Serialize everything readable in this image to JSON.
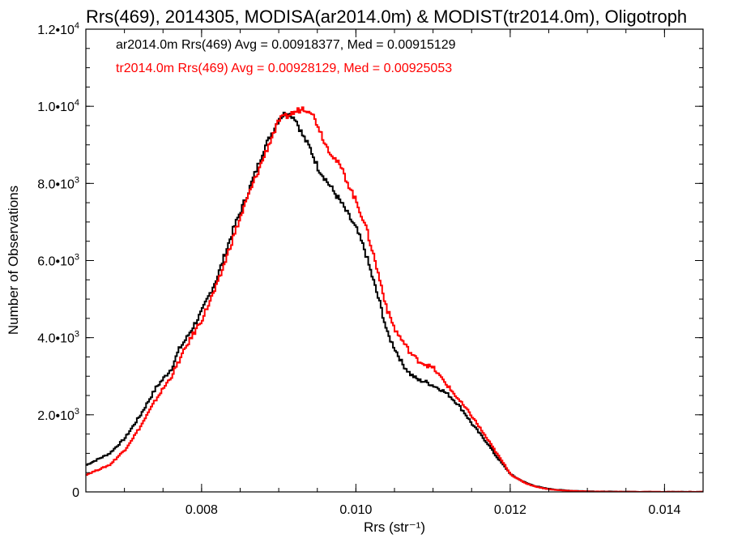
{
  "chart_data": {
    "type": "line",
    "title": "Rrs(469), 2014305, MODISA(ar2014.0m) & MODIST(tr2014.0m), Oligotroph",
    "xlabel": "Rrs (str⁻¹)",
    "ylabel": "Number of Observations",
    "xlim": [
      0.0065,
      0.0145
    ],
    "ylim": [
      0,
      12000
    ],
    "x_ticks": [
      0.008,
      0.01,
      0.012,
      0.014
    ],
    "x_tick_labels": [
      "0.008",
      "0.010",
      "0.012",
      "0.014"
    ],
    "y_ticks": [
      0,
      2000,
      4000,
      6000,
      8000,
      10000,
      12000
    ],
    "y_tick_labels": [
      {
        "mant": "0",
        "exp": ""
      },
      {
        "mant": "2.0•10",
        "exp": "3"
      },
      {
        "mant": "4.0•10",
        "exp": "3"
      },
      {
        "mant": "6.0•10",
        "exp": "3"
      },
      {
        "mant": "8.0•10",
        "exp": "3"
      },
      {
        "mant": "1.0•10",
        "exp": "4"
      },
      {
        "mant": "1.2•10",
        "exp": "4"
      }
    ],
    "legend_position": "top-left",
    "series": [
      {
        "label": "ar2014.0m Rrs(469) Avg = 0.00918377, Med = 0.00915129",
        "color": "#000000",
        "step": true,
        "x": [
          0.0065,
          0.0068,
          0.007,
          0.0072,
          0.0074,
          0.0076,
          0.0077,
          0.0078,
          0.008,
          0.0082,
          0.0084,
          0.0086,
          0.0088,
          0.0089,
          0.009,
          0.0091,
          0.0092,
          0.0093,
          0.0094,
          0.0095,
          0.0096,
          0.0097,
          0.0098,
          0.01,
          0.0101,
          0.0102,
          0.0103,
          0.0104,
          0.0105,
          0.0106,
          0.0107,
          0.0108,
          0.0109,
          0.011,
          0.0111,
          0.0112,
          0.0113,
          0.0114,
          0.0115,
          0.0116,
          0.0117,
          0.0118,
          0.0119,
          0.012,
          0.0121,
          0.0122,
          0.0123,
          0.0124,
          0.0125,
          0.0126,
          0.0128,
          0.013,
          0.0132,
          0.0134,
          0.0136,
          0.014,
          0.0145
        ],
        "y": [
          700,
          1000,
          1400,
          2000,
          2700,
          3200,
          3700,
          4000,
          4700,
          5600,
          6800,
          7800,
          8900,
          9300,
          9700,
          9850,
          9700,
          9250,
          8900,
          8400,
          8100,
          7800,
          7500,
          6800,
          6300,
          5600,
          4900,
          4100,
          3700,
          3300,
          3050,
          2900,
          2850,
          2750,
          2650,
          2500,
          2300,
          2050,
          1750,
          1500,
          1250,
          950,
          700,
          450,
          330,
          230,
          160,
          110,
          80,
          55,
          30,
          15,
          8,
          5,
          3,
          1,
          0
        ]
      },
      {
        "label": "tr2014.0m Rrs(469) Avg = 0.00928129, Med = 0.00925053",
        "color": "#ff0000",
        "step": true,
        "x": [
          0.0065,
          0.0068,
          0.007,
          0.0072,
          0.0074,
          0.0076,
          0.0077,
          0.0078,
          0.008,
          0.0082,
          0.0084,
          0.0086,
          0.0088,
          0.0089,
          0.009,
          0.0091,
          0.0092,
          0.0093,
          0.0094,
          0.0095,
          0.0096,
          0.0097,
          0.0098,
          0.01,
          0.0101,
          0.0102,
          0.0103,
          0.0104,
          0.0105,
          0.0106,
          0.0107,
          0.0108,
          0.0109,
          0.011,
          0.0111,
          0.0112,
          0.0113,
          0.0114,
          0.0115,
          0.0116,
          0.0117,
          0.0118,
          0.0119,
          0.012,
          0.0121,
          0.0122,
          0.0123,
          0.0124,
          0.0125,
          0.0126,
          0.0128,
          0.013,
          0.0132,
          0.0134,
          0.0136,
          0.014,
          0.0145
        ],
        "y": [
          450,
          700,
          1100,
          1700,
          2400,
          3000,
          3400,
          3800,
          4500,
          5400,
          6600,
          7700,
          8700,
          9200,
          9650,
          9750,
          9850,
          9950,
          9900,
          9500,
          9000,
          8700,
          8400,
          7500,
          7000,
          6300,
          5500,
          4700,
          4200,
          3900,
          3600,
          3400,
          3300,
          3200,
          2950,
          2700,
          2450,
          2200,
          1950,
          1650,
          1350,
          1050,
          750,
          450,
          320,
          220,
          150,
          100,
          70,
          45,
          25,
          12,
          6,
          4,
          2,
          1,
          0
        ]
      }
    ]
  }
}
